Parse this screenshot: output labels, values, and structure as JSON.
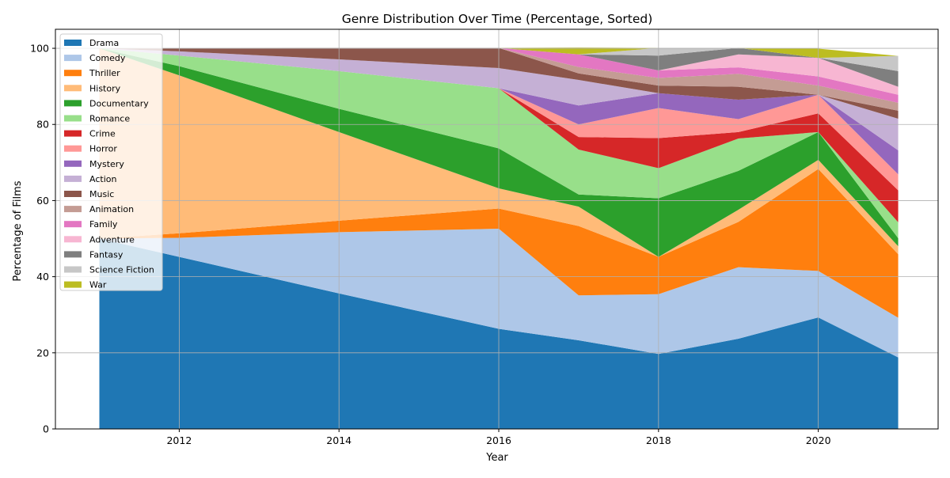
{
  "chart_data": {
    "type": "area",
    "stacked": true,
    "title": "Genre Distribution Over Time (Percentage, Sorted)",
    "xlabel": "Year",
    "ylabel": "Percentage of Films",
    "x": [
      2011,
      2012,
      2014,
      2016,
      2017,
      2018,
      2019,
      2020,
      2021
    ],
    "xlim": [
      2010.45,
      2021.5
    ],
    "ylim": [
      0,
      105
    ],
    "xticks": [
      2012,
      2014,
      2016,
      2018,
      2020
    ],
    "yticks": [
      0,
      20,
      40,
      60,
      80,
      100
    ],
    "grid": true,
    "legend_position": "upper-left",
    "series": [
      {
        "name": "Drama",
        "color": "#1f77b4",
        "values": [
          50.0,
          45.2,
          35.6,
          26.3,
          23.3,
          19.7,
          23.7,
          29.3,
          18.8
        ]
      },
      {
        "name": "Comedy",
        "color": "#aec7e8",
        "values": [
          0,
          5.0,
          16.1,
          26.3,
          11.8,
          15.7,
          18.8,
          12.2,
          10.4
        ]
      },
      {
        "name": "Thriller",
        "color": "#ff7f0e",
        "values": [
          0,
          1.2,
          3.0,
          5.3,
          18.2,
          9.8,
          11.9,
          26.8,
          16.7
        ]
      },
      {
        "name": "History",
        "color": "#ffbb78",
        "values": [
          50.0,
          41.5,
          23.3,
          5.3,
          5.1,
          0.0,
          3.2,
          2.4,
          2.1
        ]
      },
      {
        "name": "Documentary",
        "color": "#2ca02c",
        "values": [
          0,
          2.4,
          6.1,
          10.5,
          3.2,
          15.4,
          10.2,
          7.3,
          2.1
        ]
      },
      {
        "name": "Romance",
        "color": "#98df8a",
        "values": [
          0,
          2.8,
          9.9,
          15.8,
          11.8,
          7.9,
          8.5,
          0.0,
          4.2
        ]
      },
      {
        "name": "Crime",
        "color": "#d62728",
        "values": [
          0,
          0,
          0,
          0,
          3.3,
          7.9,
          1.7,
          4.9,
          8.4
        ]
      },
      {
        "name": "Horror",
        "color": "#ff9896",
        "values": [
          0,
          0,
          0,
          0,
          3.3,
          7.9,
          3.4,
          4.9,
          4.2
        ]
      },
      {
        "name": "Mystery",
        "color": "#9467bd",
        "values": [
          0,
          0,
          0,
          0,
          5.0,
          3.9,
          5.1,
          0.0,
          6.3
        ]
      },
      {
        "name": "Action",
        "color": "#c5b0d5",
        "values": [
          0,
          1.1,
          3.1,
          5.3,
          6.7,
          0.0,
          0.0,
          0.0,
          8.3
        ]
      },
      {
        "name": "Music",
        "color": "#8c564b",
        "values": [
          0,
          0.8,
          3.0,
          5.3,
          1.7,
          2.0,
          3.4,
          0.0,
          2.1
        ]
      },
      {
        "name": "Animation",
        "color": "#c49c94",
        "values": [
          0,
          0,
          0,
          0,
          1.7,
          2.0,
          3.4,
          2.4,
          2.1
        ]
      },
      {
        "name": "Family",
        "color": "#e377c2",
        "values": [
          0,
          0,
          0,
          0,
          3.3,
          2.0,
          1.7,
          2.4,
          2.1
        ]
      },
      {
        "name": "Adventure",
        "color": "#f7b6d2",
        "values": [
          0,
          0,
          0,
          0,
          0.0,
          0.0,
          3.4,
          4.9,
          2.1
        ]
      },
      {
        "name": "Fantasy",
        "color": "#7f7f7f",
        "values": [
          0,
          0,
          0,
          0,
          0.0,
          3.9,
          1.7,
          0.0,
          4.1
        ]
      },
      {
        "name": "Science Fiction",
        "color": "#c7c7c7",
        "values": [
          0,
          0,
          0,
          0,
          0.0,
          2.0,
          0.0,
          0.0,
          4.0
        ]
      },
      {
        "name": "War",
        "color": "#bcbd22",
        "values": [
          0,
          0,
          0,
          0,
          1.8,
          0.0,
          0.0,
          2.4,
          0.0
        ]
      }
    ]
  }
}
